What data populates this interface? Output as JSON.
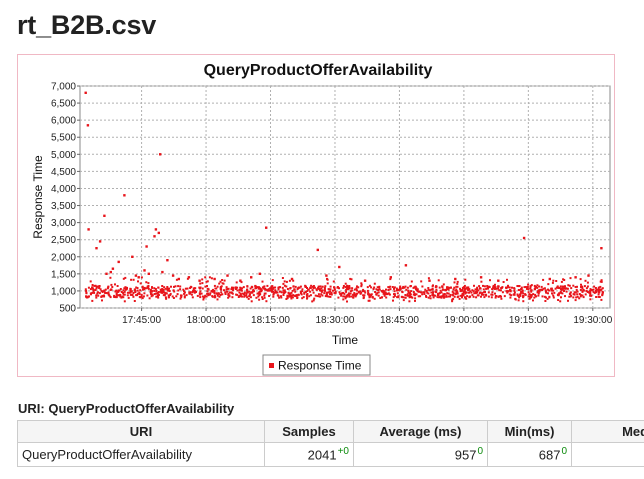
{
  "page": {
    "title": "rt_B2B.csv"
  },
  "chart_data": {
    "type": "scatter",
    "title": "QueryProductOfferAvailability",
    "xlabel": "Time",
    "ylabel": "Response Time",
    "x_is_time": true,
    "xlim": [
      "17:30:40",
      "19:34:00"
    ],
    "ylim": [
      500,
      7000
    ],
    "y_ticks": [
      500,
      1000,
      1500,
      2000,
      2500,
      3000,
      3500,
      4000,
      4500,
      5000,
      5500,
      6000,
      6500,
      7000
    ],
    "y_tick_labels": [
      "500",
      "1,000",
      "1,500",
      "2,000",
      "2,500",
      "3,000",
      "3,500",
      "4,000",
      "4,500",
      "5,000",
      "5,500",
      "6,000",
      "6,500",
      "7,000"
    ],
    "x_ticks": [
      "17:45:00",
      "18:00:00",
      "18:15:00",
      "18:30:00",
      "18:45:00",
      "19:00:00",
      "19:15:00",
      "19:30:00"
    ],
    "grid": true,
    "legend_position": "bottom",
    "series": [
      {
        "name": "Response Time",
        "color": "#e8151b",
        "sample_count": 2041,
        "baseline_min": 687,
        "baseline_typical": [
          800,
          1150
        ],
        "points": [
          [
            "17:32:00",
            6800
          ],
          [
            "17:32:30",
            5850
          ],
          [
            "17:32:40",
            2800
          ],
          [
            "17:34:30",
            2250
          ],
          [
            "17:35:20",
            2450
          ],
          [
            "17:36:20",
            3200
          ],
          [
            "17:36:50",
            1500
          ],
          [
            "17:37:50",
            1550
          ],
          [
            "17:38:20",
            1650
          ],
          [
            "17:39:40",
            1850
          ],
          [
            "17:41:00",
            3800
          ],
          [
            "17:42:50",
            2000
          ],
          [
            "17:43:40",
            1450
          ],
          [
            "17:44:20",
            1400
          ],
          [
            "17:45:40",
            1600
          ],
          [
            "17:46:10",
            2300
          ],
          [
            "17:46:40",
            1500
          ],
          [
            "17:48:00",
            2600
          ],
          [
            "17:48:20",
            2800
          ],
          [
            "17:49:00",
            2700
          ],
          [
            "17:49:20",
            5000
          ],
          [
            "17:49:50",
            1550
          ],
          [
            "17:51:00",
            1900
          ],
          [
            "17:52:20",
            1450
          ],
          [
            "17:53:40",
            1350
          ],
          [
            "17:56:00",
            1400
          ],
          [
            "17:58:30",
            1300
          ],
          [
            "18:02:00",
            1350
          ],
          [
            "18:05:00",
            1450
          ],
          [
            "18:08:00",
            1300
          ],
          [
            "18:10:30",
            1400
          ],
          [
            "18:12:30",
            1500
          ],
          [
            "18:14:00",
            2850
          ],
          [
            "18:20:00",
            1350
          ],
          [
            "18:26:00",
            2200
          ],
          [
            "18:28:00",
            1450
          ],
          [
            "18:31:00",
            1700
          ],
          [
            "18:37:00",
            1300
          ],
          [
            "18:43:00",
            1400
          ],
          [
            "18:46:30",
            1750
          ],
          [
            "18:52:00",
            1300
          ],
          [
            "18:58:00",
            1350
          ],
          [
            "19:04:00",
            1400
          ],
          [
            "19:08:00",
            1300
          ],
          [
            "19:14:00",
            2550
          ],
          [
            "19:20:00",
            1350
          ],
          [
            "19:26:00",
            1400
          ],
          [
            "19:29:00",
            1450
          ],
          [
            "19:32:00",
            2250
          ]
        ]
      }
    ]
  },
  "stats": {
    "heading": "URI: QueryProductOfferAvailability",
    "columns": [
      "URI",
      "Samples",
      "Average (ms)",
      "Min(ms)",
      "Median"
    ],
    "rows": [
      {
        "uri": "QueryProductOfferAvailability",
        "samples": "2041",
        "samples_delta": "+0",
        "average": "957",
        "average_delta": "0",
        "min": "687",
        "min_delta": "0"
      }
    ]
  }
}
